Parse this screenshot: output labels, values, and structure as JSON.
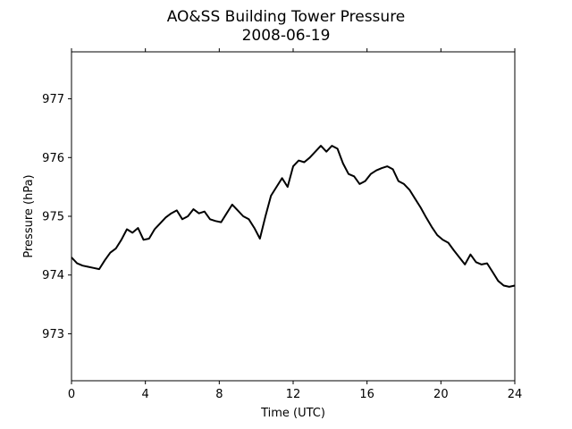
{
  "chart_data": {
    "type": "line",
    "title": "AO&SS Building Tower Pressure",
    "subtitle": "2008-06-19",
    "xlabel": "Time (UTC)",
    "ylabel": "Pressure (hPa)",
    "xlim": [
      0,
      24
    ],
    "ylim": [
      972.2,
      977.8
    ],
    "xticks": [
      0,
      4,
      8,
      12,
      16,
      20,
      24
    ],
    "yticks": [
      973,
      974,
      975,
      976,
      977
    ],
    "grid": false,
    "series": [
      {
        "color": "#000000",
        "x": [
          0,
          0.3,
          0.6,
          0.9,
          1.2,
          1.5,
          1.8,
          2.1,
          2.4,
          2.7,
          3.0,
          3.3,
          3.6,
          3.9,
          4.2,
          4.5,
          4.8,
          5.1,
          5.4,
          5.7,
          6.0,
          6.3,
          6.6,
          6.9,
          7.2,
          7.5,
          7.8,
          8.1,
          8.4,
          8.7,
          9.0,
          9.3,
          9.6,
          9.9,
          10.2,
          10.5,
          10.8,
          11.1,
          11.4,
          11.7,
          12.0,
          12.3,
          12.6,
          12.9,
          13.2,
          13.5,
          13.8,
          14.1,
          14.4,
          14.7,
          15.0,
          15.3,
          15.6,
          15.9,
          16.2,
          16.5,
          16.8,
          17.1,
          17.4,
          17.7,
          18.0,
          18.3,
          18.6,
          18.9,
          19.2,
          19.5,
          19.8,
          20.1,
          20.4,
          20.7,
          21.0,
          21.3,
          21.6,
          21.9,
          22.2,
          22.5,
          22.8,
          23.1,
          23.4,
          23.7,
          24.0
        ],
        "values": [
          974.3,
          974.2,
          974.16,
          974.14,
          974.12,
          974.1,
          974.25,
          974.38,
          974.45,
          974.6,
          974.78,
          974.72,
          974.8,
          974.6,
          974.62,
          974.78,
          974.88,
          974.98,
          975.05,
          975.1,
          974.95,
          975.0,
          975.12,
          975.05,
          975.08,
          974.95,
          974.92,
          974.9,
          975.05,
          975.2,
          975.1,
          975.0,
          974.95,
          974.8,
          974.62,
          975.0,
          975.35,
          975.5,
          975.65,
          975.5,
          975.85,
          975.95,
          975.92,
          976.0,
          976.1,
          976.2,
          976.1,
          976.2,
          976.15,
          975.9,
          975.72,
          975.68,
          975.55,
          975.6,
          975.72,
          975.78,
          975.82,
          975.85,
          975.8,
          975.6,
          975.55,
          975.45,
          975.3,
          975.15,
          974.98,
          974.82,
          974.68,
          974.6,
          974.55,
          974.42,
          974.3,
          974.18,
          974.35,
          974.22,
          974.18,
          974.2,
          974.05,
          973.9,
          973.82,
          973.8,
          973.82
        ]
      }
    ]
  }
}
